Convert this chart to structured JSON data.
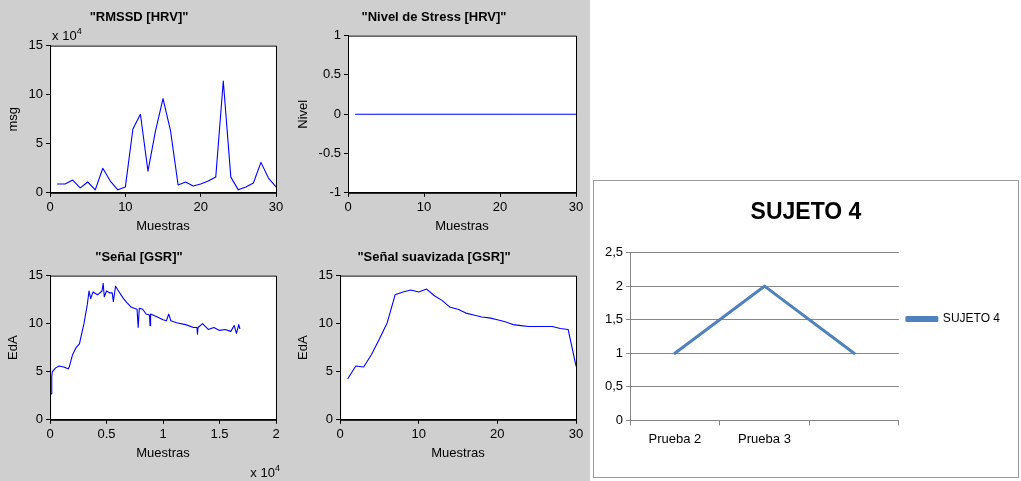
{
  "chart_data": [
    {
      "type": "line",
      "title": "\"RMSSD [HRV]\"",
      "xlabel": "Muestras",
      "ylabel": "msg",
      "annotations": [
        "x 10$^{4}$"
      ],
      "x": [
        1,
        2,
        3,
        4,
        5,
        6,
        7,
        8,
        9,
        10,
        11,
        12,
        13,
        14,
        15,
        16,
        17,
        18,
        19,
        20,
        21,
        22,
        23,
        24,
        25,
        26,
        27,
        28,
        29,
        30
      ],
      "series": [
        {
          "color": "#0000ff",
          "values": [
            0.9,
            0.9,
            1.3,
            0.5,
            1.1,
            0.3,
            2.5,
            1.2,
            0.3,
            0.6,
            6.5,
            8.0,
            2.2,
            6.3,
            9.6,
            6.3,
            0.8,
            1.1,
            0.7,
            0.9,
            1.2,
            1.6,
            11.4,
            1.6,
            0.3,
            0.6,
            1.0,
            3.1,
            1.5,
            0.6
          ]
        }
      ],
      "xlim": [
        0,
        30
      ],
      "xticks": [
        0,
        10,
        20,
        30
      ],
      "ylim": [
        0,
        15
      ],
      "yticks": [
        0,
        5,
        10,
        15
      ],
      "grid": false,
      "legend": false,
      "marker": "none"
    },
    {
      "type": "line",
      "title": "\"Nivel de Stress [HRV]\"",
      "xlabel": "Muestras",
      "ylabel": "Nivel",
      "x": [
        1,
        2,
        3,
        4,
        5,
        6,
        7,
        8,
        9,
        10,
        11,
        12,
        13,
        14,
        15,
        16,
        17,
        18,
        19,
        20,
        21,
        22,
        23,
        24,
        25,
        26,
        27,
        28,
        29,
        30
      ],
      "series": [
        {
          "color": "#0000ff",
          "values": [
            0,
            0,
            0,
            0,
            0,
            0,
            0,
            0,
            0,
            0,
            0,
            0,
            0,
            0,
            0,
            0,
            0,
            0,
            0,
            0,
            0,
            0,
            0,
            0,
            0,
            0,
            0,
            0,
            0,
            0
          ]
        }
      ],
      "xlim": [
        0,
        30
      ],
      "xticks": [
        0,
        10,
        20,
        30
      ],
      "ylim": [
        -1,
        1
      ],
      "yticks": [
        -1,
        -0.5,
        0,
        0.5,
        1
      ],
      "grid": false,
      "legend": false,
      "marker": "none"
    },
    {
      "type": "line",
      "title": "\"Señal [GSR]\"",
      "xlabel": "Muestras",
      "ylabel": "EdA",
      "annotations": [
        "x 10$^{4}$"
      ],
      "x": [
        0.01,
        0.015,
        0.02,
        0.05,
        0.08,
        0.12,
        0.16,
        0.17,
        0.2,
        0.23,
        0.26,
        0.3,
        0.33,
        0.345,
        0.36,
        0.38,
        0.42,
        0.46,
        0.47,
        0.48,
        0.5,
        0.53,
        0.55,
        0.56,
        0.58,
        0.6,
        0.65,
        0.68,
        0.72,
        0.77,
        0.78,
        0.79,
        0.82,
        0.85,
        0.88,
        0.885,
        0.89,
        0.95,
        1.0,
        1.03,
        1.05,
        1.07,
        1.12,
        1.2,
        1.27,
        1.3,
        1.305,
        1.31,
        1.35,
        1.4,
        1.45,
        1.5,
        1.55,
        1.6,
        1.63,
        1.65,
        1.67,
        1.68
      ],
      "series": [
        {
          "color": "#0000ff",
          "values": [
            2.7,
            4.5,
            5.0,
            5.4,
            5.6,
            5.5,
            5.3,
            5.5,
            6.8,
            7.5,
            7.9,
            10.0,
            12.0,
            13.4,
            12.6,
            13.3,
            13.0,
            13.4,
            14.2,
            12.8,
            13.4,
            13.2,
            13.2,
            12.3,
            13.9,
            13.5,
            12.6,
            12.2,
            11.7,
            11.5,
            9.6,
            11.6,
            11.5,
            11.0,
            10.9,
            9.8,
            11.0,
            10.7,
            10.4,
            10.3,
            11.0,
            10.3,
            10.1,
            9.9,
            9.6,
            9.6,
            8.9,
            9.6,
            10.0,
            9.4,
            9.6,
            9.3,
            9.4,
            9.2,
            9.8,
            9.0,
            9.9,
            9.5
          ]
        }
      ],
      "xlim": [
        0,
        2
      ],
      "xticks": [
        0,
        0.5,
        1,
        1.5,
        2
      ],
      "ylim": [
        0,
        15
      ],
      "yticks": [
        0,
        5,
        10,
        15
      ],
      "grid": false,
      "legend": false,
      "marker": "none"
    },
    {
      "type": "line",
      "title": "\"Señal suavizada [GSR]\"",
      "xlabel": "Muestras",
      "ylabel": "EdA",
      "x": [
        1,
        2,
        3,
        4,
        5,
        6,
        7,
        8,
        9,
        10,
        11,
        12,
        13,
        14,
        15,
        16,
        17,
        18,
        19,
        20,
        21,
        22,
        23,
        24,
        25,
        26,
        27,
        28,
        29,
        30
      ],
      "series": [
        {
          "color": "#0000ff",
          "values": [
            4.3,
            5.6,
            5.5,
            6.8,
            8.4,
            10.1,
            13.0,
            13.3,
            13.5,
            13.3,
            13.6,
            12.9,
            12.4,
            11.7,
            11.5,
            11.1,
            10.9,
            10.7,
            10.6,
            10.4,
            10.2,
            9.9,
            9.8,
            9.7,
            9.7,
            9.7,
            9.7,
            9.5,
            9.4,
            5.6
          ]
        }
      ],
      "xlim": [
        0,
        30
      ],
      "xticks": [
        0,
        10,
        20,
        30
      ],
      "ylim": [
        0,
        15
      ],
      "yticks": [
        0,
        5,
        10,
        15
      ],
      "grid": false,
      "legend": false,
      "marker": "none"
    },
    {
      "type": "line",
      "title": "SUJETO 4",
      "categories": [
        "Prueba 2",
        "Prueba 3",
        null
      ],
      "series": [
        {
          "name": "SUJETO 4",
          "color": "#4f81bd",
          "values": [
            1,
            2,
            1
          ]
        }
      ],
      "ylim": [
        0,
        2.5
      ],
      "yticks": [
        0,
        {
          "value": 0.5,
          "label": "0,5"
        },
        1,
        {
          "value": 1.5,
          "label": "1,5"
        },
        2,
        {
          "value": 2.5,
          "label": "2,5"
        }
      ],
      "grid": "y",
      "legend": "right",
      "marker": "none"
    }
  ]
}
